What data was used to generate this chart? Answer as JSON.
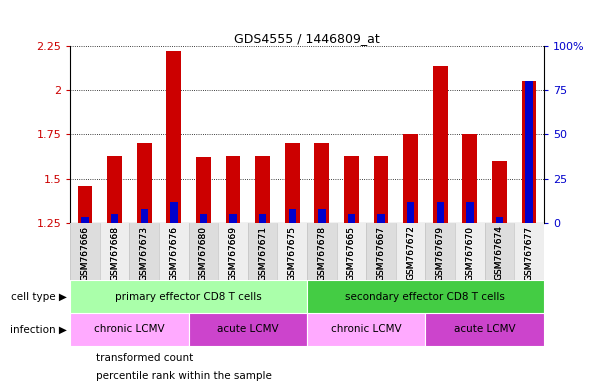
{
  "title": "GDS4555 / 1446809_at",
  "samples": [
    "GSM767666",
    "GSM767668",
    "GSM767673",
    "GSM767676",
    "GSM767680",
    "GSM767669",
    "GSM767671",
    "GSM767675",
    "GSM767678",
    "GSM767665",
    "GSM767667",
    "GSM767672",
    "GSM767679",
    "GSM767670",
    "GSM767674",
    "GSM767677"
  ],
  "transformed_count": [
    1.46,
    1.63,
    1.7,
    2.22,
    1.62,
    1.63,
    1.63,
    1.7,
    1.7,
    1.63,
    1.63,
    1.75,
    2.14,
    1.75,
    1.6,
    2.05
  ],
  "percentile_rank": [
    3,
    5,
    8,
    12,
    5,
    5,
    5,
    8,
    8,
    5,
    5,
    12,
    12,
    12,
    3,
    80
  ],
  "ylim_left": [
    1.25,
    2.25
  ],
  "ylim_right": [
    0,
    100
  ],
  "yticks_left": [
    1.25,
    1.5,
    1.75,
    2.0,
    2.25
  ],
  "yticks_right": [
    0,
    25,
    50,
    75,
    100
  ],
  "ytick_labels_left": [
    "1.25",
    "1.5",
    "1.75",
    "2",
    "2.25"
  ],
  "ytick_labels_right": [
    "0",
    "25",
    "50",
    "75",
    "100%"
  ],
  "bar_color": "#CC0000",
  "dot_color": "#0000CC",
  "cell_type_groups": [
    {
      "label": "primary effector CD8 T cells",
      "start": 0,
      "end": 8,
      "color": "#AAFFAA"
    },
    {
      "label": "secondary effector CD8 T cells",
      "start": 8,
      "end": 16,
      "color": "#44CC44"
    }
  ],
  "infection_groups": [
    {
      "label": "chronic LCMV",
      "start": 0,
      "end": 4,
      "color": "#FFAAFF"
    },
    {
      "label": "acute LCMV",
      "start": 4,
      "end": 8,
      "color": "#CC44CC"
    },
    {
      "label": "chronic LCMV",
      "start": 8,
      "end": 12,
      "color": "#FFAAFF"
    },
    {
      "label": "acute LCMV",
      "start": 12,
      "end": 16,
      "color": "#CC44CC"
    }
  ],
  "legend_items": [
    {
      "label": "transformed count",
      "color": "#CC0000"
    },
    {
      "label": "percentile rank within the sample",
      "color": "#0000CC"
    }
  ],
  "bg_color": "#FFFFFF",
  "bar_width": 0.5,
  "dot_bar_width": 0.25
}
